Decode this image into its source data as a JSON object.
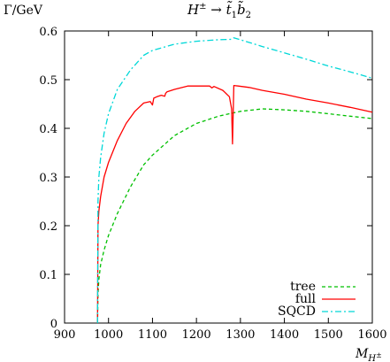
{
  "chart_data": {
    "type": "line",
    "title": "H^± → t̃_1 b̃_2",
    "ylabel": "Γ/GeV",
    "xlabel": "M_H±",
    "xlim": [
      900,
      1600
    ],
    "ylim": [
      0,
      0.6
    ],
    "xticks": [
      900,
      1000,
      1100,
      1200,
      1300,
      1400,
      1500,
      1600
    ],
    "yticks": [
      0,
      0.1,
      0.2,
      0.3,
      0.4,
      0.5,
      0.6
    ],
    "ytick_labels": [
      "0",
      "0.1",
      "0.2",
      "0.3",
      "0.4",
      "0.5",
      "0.6"
    ],
    "legend_position": "bottom-right",
    "grid": false,
    "series": [
      {
        "name": "tree",
        "color": "#00c000",
        "dash": "dashed",
        "x": [
          975,
          976,
          978,
          982,
          990,
          1000,
          1020,
          1050,
          1080,
          1100,
          1150,
          1200,
          1250,
          1300,
          1350,
          1400,
          1450,
          1500,
          1550,
          1600
        ],
        "y": [
          0.0,
          0.06,
          0.09,
          0.12,
          0.15,
          0.18,
          0.225,
          0.28,
          0.325,
          0.345,
          0.385,
          0.41,
          0.425,
          0.435,
          0.44,
          0.438,
          0.435,
          0.43,
          0.425,
          0.42
        ]
      },
      {
        "name": "full",
        "color": "#ff0000",
        "dash": "solid",
        "x": [
          975,
          976,
          978,
          982,
          990,
          1000,
          1020,
          1040,
          1060,
          1080,
          1095,
          1100,
          1103,
          1110,
          1120,
          1128,
          1130,
          1133,
          1150,
          1180,
          1230,
          1235,
          1240,
          1260,
          1275,
          1280,
          1282,
          1285,
          1295,
          1320,
          1350,
          1400,
          1450,
          1500,
          1550,
          1600
        ],
        "y": [
          0.0,
          0.2,
          0.23,
          0.26,
          0.3,
          0.33,
          0.375,
          0.41,
          0.435,
          0.452,
          0.455,
          0.448,
          0.462,
          0.465,
          0.468,
          0.466,
          0.472,
          0.475,
          0.48,
          0.487,
          0.487,
          0.483,
          0.486,
          0.478,
          0.465,
          0.44,
          0.368,
          0.488,
          0.487,
          0.484,
          0.478,
          0.47,
          0.46,
          0.452,
          0.443,
          0.433
        ]
      },
      {
        "name": "SQCD",
        "color": "#00d8d8",
        "dash": "dashdot",
        "x": [
          975,
          976,
          978,
          982,
          990,
          1000,
          1020,
          1050,
          1080,
          1100,
          1150,
          1200,
          1250,
          1280,
          1285,
          1300,
          1350,
          1400,
          1450,
          1500,
          1550,
          1600
        ],
        "y": [
          0.0,
          0.25,
          0.3,
          0.34,
          0.39,
          0.43,
          0.48,
          0.52,
          0.55,
          0.56,
          0.573,
          0.579,
          0.582,
          0.583,
          0.586,
          0.582,
          0.568,
          0.555,
          0.542,
          0.528,
          0.516,
          0.503
        ]
      }
    ]
  }
}
